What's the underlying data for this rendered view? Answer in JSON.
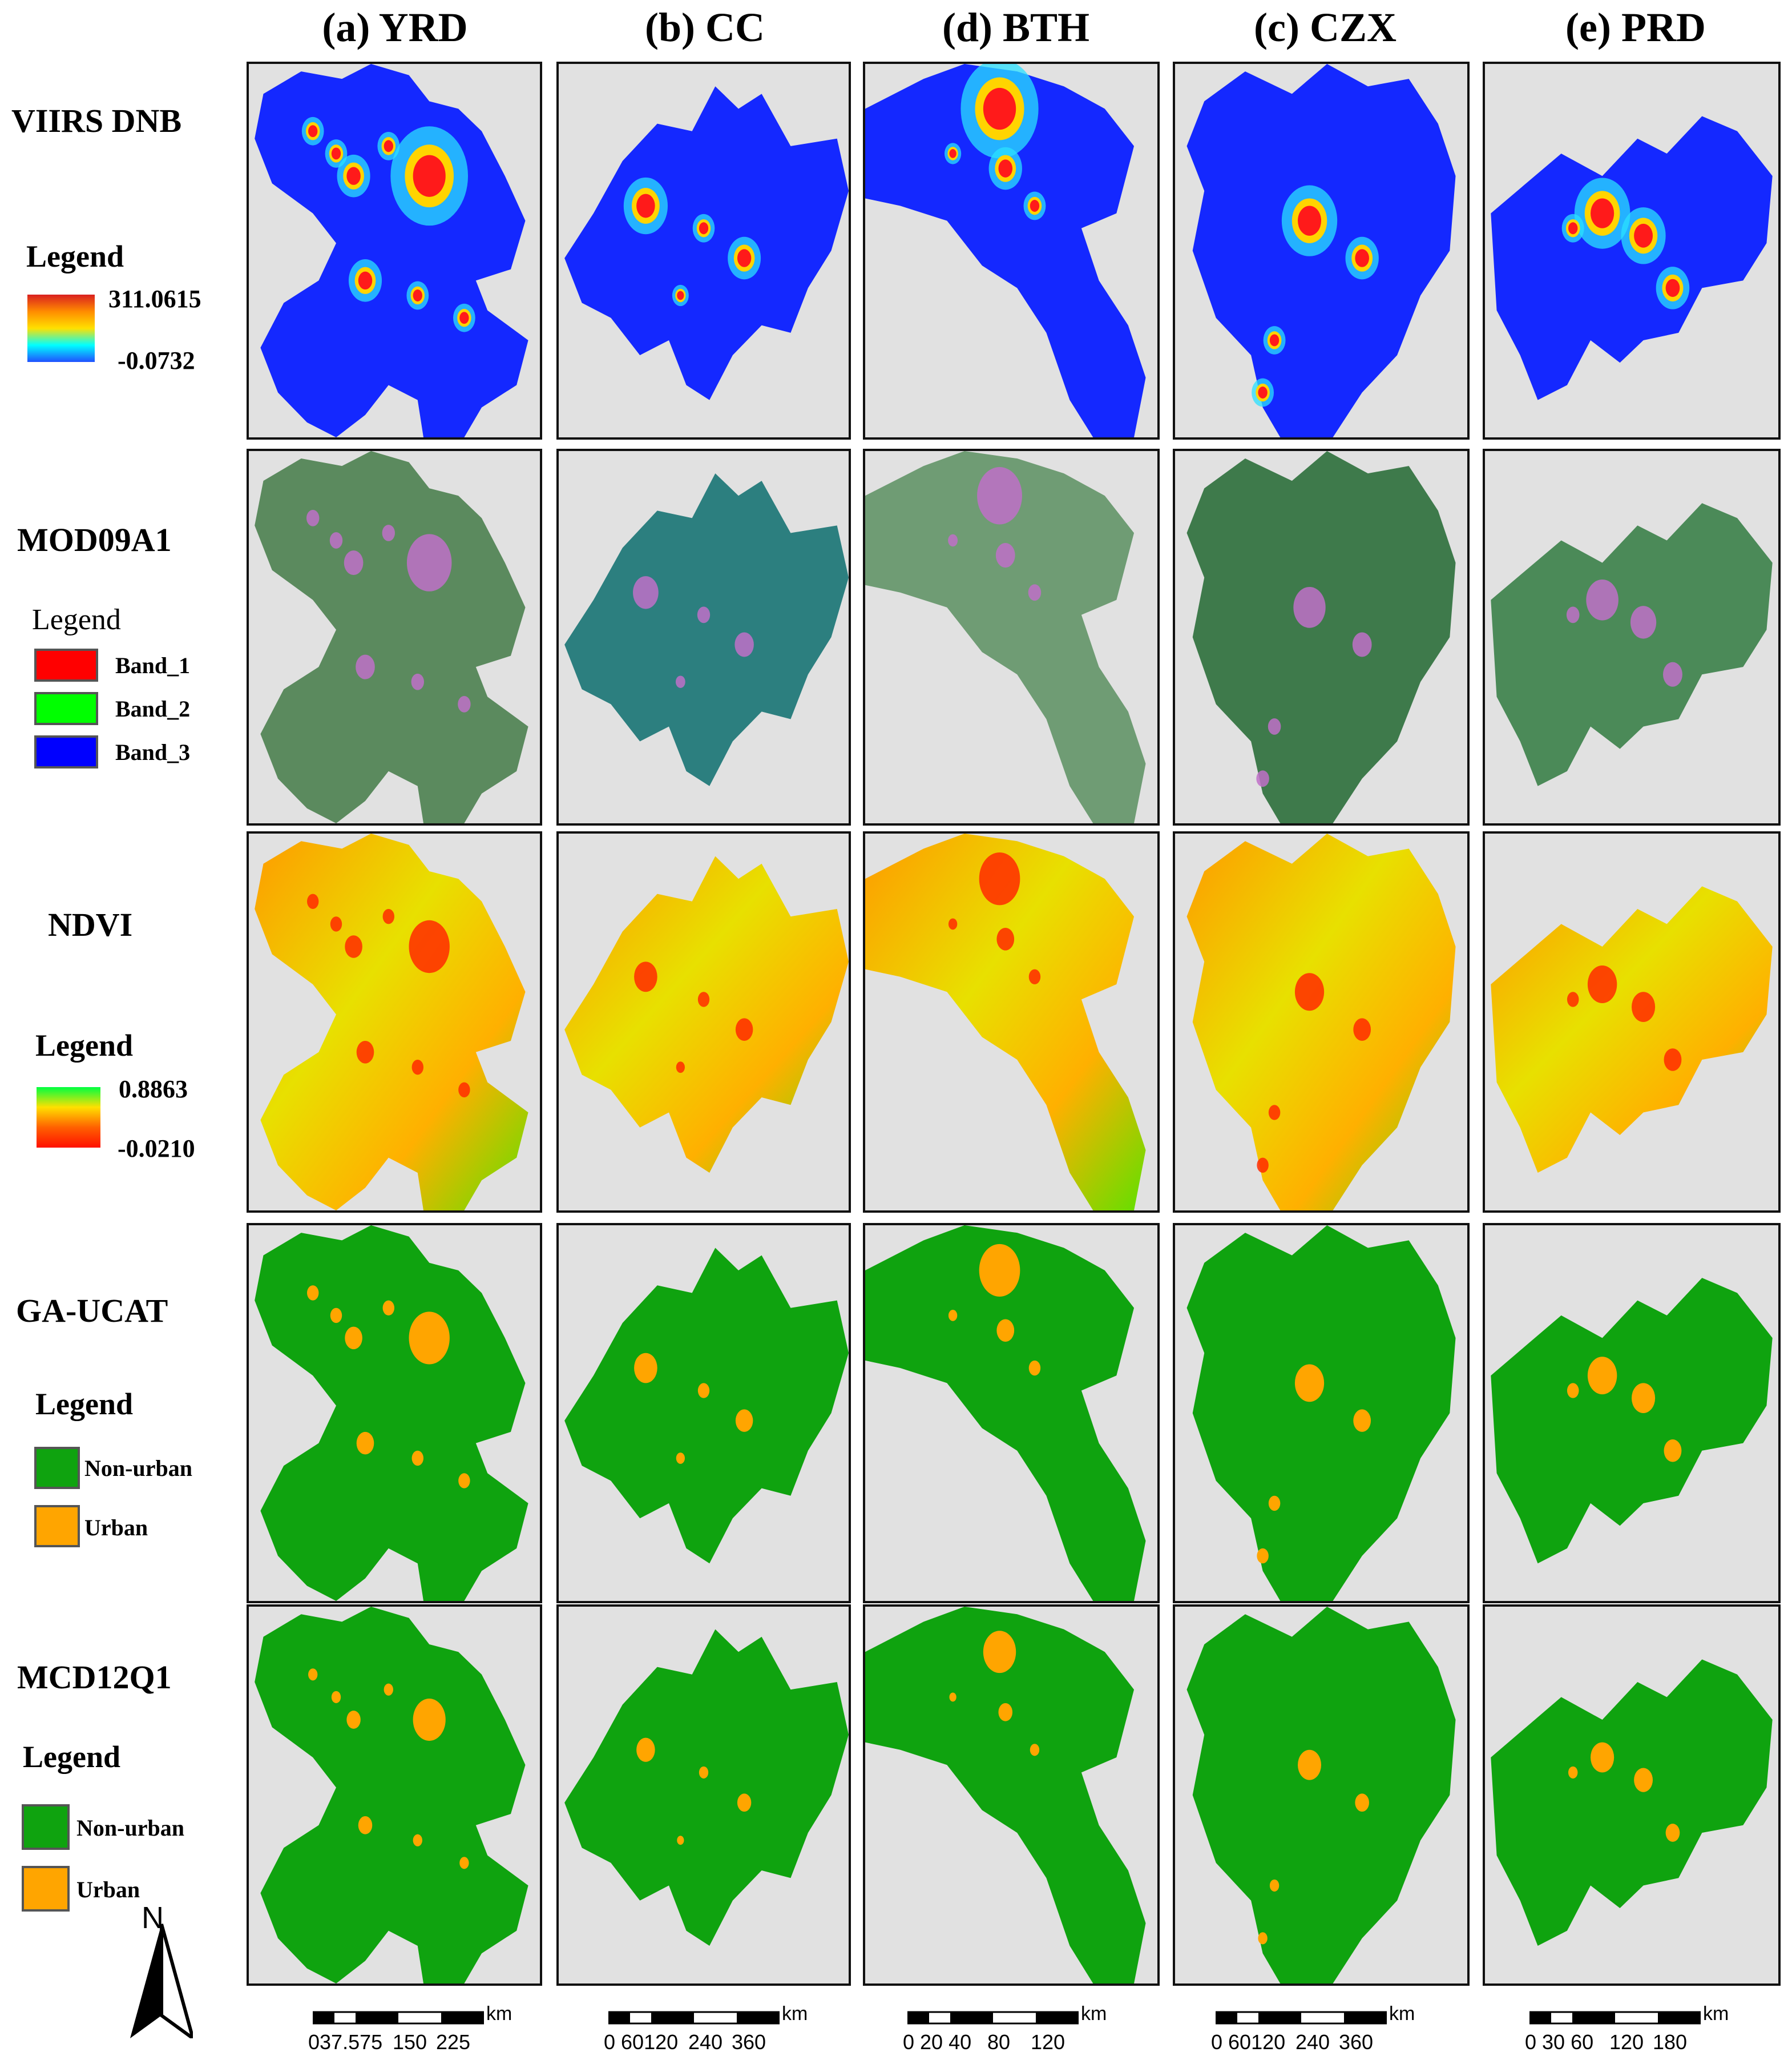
{
  "columns": [
    "(a) YRD",
    "(b) CC",
    "(d) BTH",
    "(c) CZX",
    "(e) PRD"
  ],
  "rows": {
    "viirs": {
      "label": "VIIRS DNB",
      "legend_title": "Legend",
      "max": "311.0615",
      "min": "-0.0732"
    },
    "mod09": {
      "label": "MOD09A1",
      "legend_title": "Legend",
      "bands": [
        "Band_1",
        "Band_2",
        "Band_3"
      ],
      "band_colors": [
        "#ff0000",
        "#00ff00",
        "#0000ff"
      ]
    },
    "ndvi": {
      "label": "NDVI",
      "legend_title": "Legend",
      "max": "0.8863",
      "min": "-0.0210"
    },
    "gaucat": {
      "label": "GA-UCAT",
      "legend_title": "Legend",
      "classes": [
        "Non-urban",
        "Urban"
      ]
    },
    "mcd12": {
      "label": "MCD12Q1",
      "legend_title": "Legend",
      "classes": [
        "Non-urban",
        "Urban"
      ]
    }
  },
  "colors": {
    "background": "#e1e1e1",
    "nonurban": "#0fa30f",
    "urban": "#ffa500",
    "viirs_base": "#1428ff",
    "mod_yrd": "#5b8a5e",
    "mod_cc": "#2c7f7f",
    "mod_bth": "#6f9c74",
    "mod_czx": "#3e7a4b",
    "mod_prd": "#4b8a58"
  },
  "north": "N",
  "scalebars": [
    {
      "unit": "km",
      "ticks": [
        "037.575",
        "150",
        "225"
      ]
    },
    {
      "unit": "km",
      "ticks": [
        "0 60120",
        "240",
        "360"
      ]
    },
    {
      "unit": "km",
      "ticks": [
        "0 20 40",
        "80",
        "120"
      ]
    },
    {
      "unit": "km",
      "ticks": [
        "0 60120",
        "240",
        "360"
      ]
    },
    {
      "unit": "km",
      "ticks": [
        "0 30 60",
        "120",
        "180"
      ]
    }
  ]
}
